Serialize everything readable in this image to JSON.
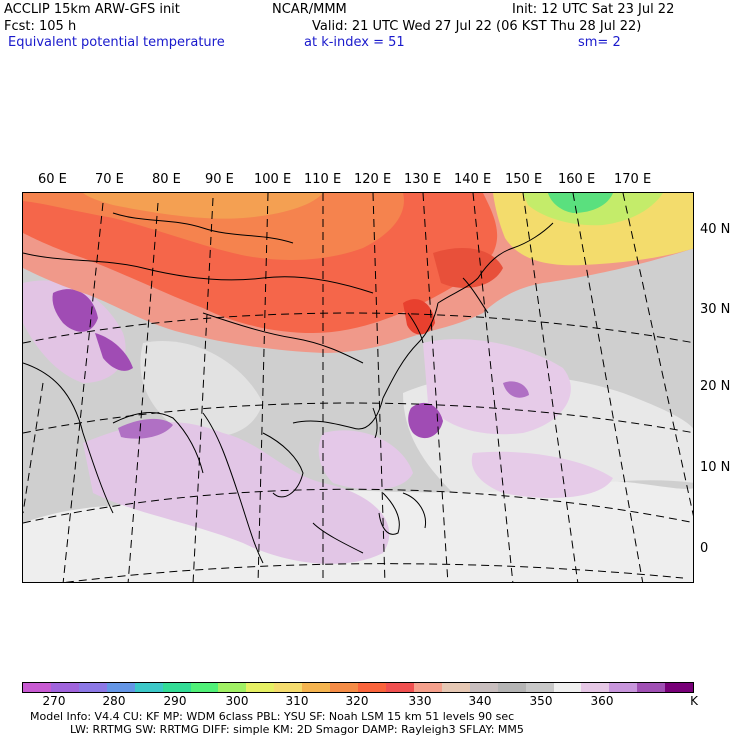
{
  "header": {
    "title": "ACCLIP 15km ARW-GFS init",
    "center": "NCAR/MMM",
    "init": "Init: 12 UTC Sat 23 Jul 22",
    "fcst": "Fcst:  105 h",
    "valid": "Valid: 21 UTC Wed 27 Jul 22 (06 KST Thu 28 Jul 22)",
    "field": "Equivalent potential temperature",
    "level": "at k-index =  51",
    "smooth": "sm= 2"
  },
  "map": {
    "lon_labels": [
      "60 E",
      "70 E",
      "80 E",
      "90 E",
      "100 E",
      "110 E",
      "120 E",
      "130 E",
      "140 E",
      "150 E",
      "160 E",
      "170 E"
    ],
    "lat_labels": [
      "40 N",
      "30 N",
      "20 N",
      "10 N",
      "0"
    ]
  },
  "colorbar": {
    "colors": [
      "#c85ad2",
      "#a064dc",
      "#8c78e6",
      "#6496e6",
      "#3cc8c8",
      "#32dc96",
      "#50f078",
      "#a0f064",
      "#e6f064",
      "#f5dc6e",
      "#f5b450",
      "#f58c46",
      "#fa643c",
      "#f05050",
      "#f5a08c",
      "#e6c8b4",
      "#c8bebe",
      "#b4b4b4",
      "#c8c8c8",
      "#f0f0f0",
      "#e6c8e6",
      "#c896dc",
      "#a050b4",
      "#780078"
    ],
    "ticks": [
      "270",
      "280",
      "290",
      "300",
      "310",
      "320",
      "330",
      "340",
      "350",
      "360"
    ],
    "unit": "K"
  },
  "footer": {
    "line1": "Model Info: V4.4      CU: KF       MP: WDM 6class   PBL: YSU       SF: Noah LSM      15 km    51 levels    90 sec",
    "line2": "LW: RRTMG    SW: RRTMG   DIFF: simple KM: 2D Smagor DAMP: Rayleigh3   SFLAY: MM5"
  }
}
